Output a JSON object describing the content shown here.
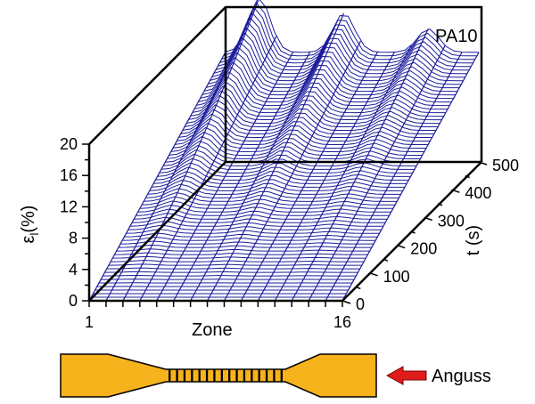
{
  "chart_data": {
    "type": "surface3d",
    "title": "PA10",
    "xlabel": "Zone",
    "ylabel": "t (s)",
    "zlabel": "ε_l (%)",
    "zlabel_main": "ε",
    "zlabel_sub": "l",
    "zlabel_unit": "(%)",
    "zone_range": [
      1,
      16
    ],
    "zone_ticks": [
      "1",
      "16"
    ],
    "time_range": [
      0,
      500
    ],
    "time_ticks": [
      "0",
      "100",
      "200",
      "300",
      "400",
      "500"
    ],
    "strain_range": [
      0,
      20
    ],
    "strain_ticks": [
      "0",
      "4",
      "8",
      "12",
      "16",
      "20"
    ],
    "mesh_color": "#1c1c9c",
    "peak_strain": 20,
    "band_zones": [
      3,
      8,
      13
    ],
    "band_strain_at_end": [
      21,
      19,
      17
    ]
  },
  "specimen": {
    "fill_color": "#f7b31c",
    "stripe_count": 16,
    "arrow_color": "#e01b1b",
    "arrow_label": "Anguss"
  }
}
